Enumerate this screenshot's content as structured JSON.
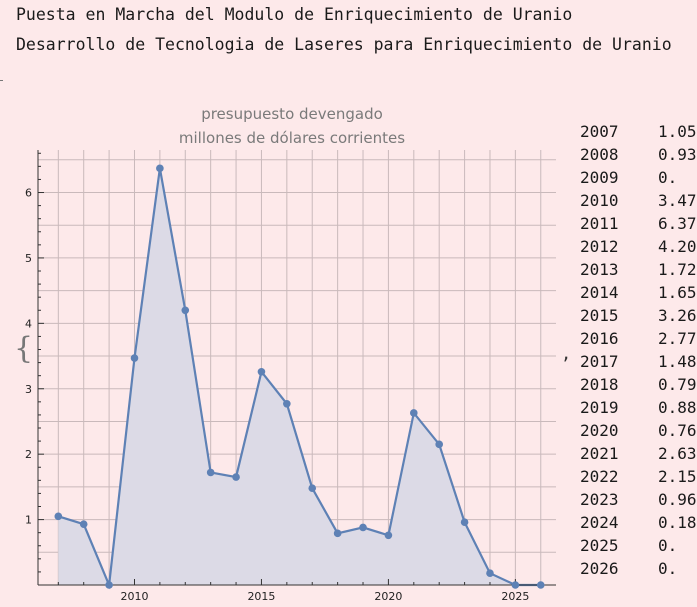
{
  "headings": [
    "Puesta en Marcha del Modulo de Enriquecimiento de Uranio",
    "Desarrollo de Tecnologia de Laseres para Enriquecimiento de Uranio"
  ],
  "brace": "{",
  "comma": ",",
  "chart_data": {
    "type": "area",
    "title": "presupuesto devengado",
    "subtitle": "millones de dólares corrientes",
    "xlabel": "",
    "ylabel": "",
    "x": [
      2007,
      2008,
      2009,
      2010,
      2011,
      2012,
      2013,
      2014,
      2015,
      2016,
      2017,
      2018,
      2019,
      2020,
      2021,
      2022,
      2023,
      2024,
      2025,
      2026
    ],
    "series": [
      {
        "values": [
          1.05,
          0.93,
          0,
          3.47,
          6.37,
          4.2,
          1.72,
          1.65,
          3.26,
          2.77,
          1.48,
          0.79,
          0.88,
          0.76,
          2.63,
          2.15,
          0.96,
          0.18,
          0,
          0
        ]
      }
    ],
    "xlim": [
      2006.2,
      2026.6
    ],
    "ylim": [
      0,
      6.65
    ],
    "xticks": [
      2010,
      2015,
      2020,
      2025
    ],
    "yticks": [
      1,
      2,
      3,
      4,
      5,
      6
    ],
    "grid": true,
    "line_color": "#5e81b5",
    "fill_color": "#dcdae6"
  },
  "table": {
    "rows": [
      {
        "year": "2007",
        "value": "1.05"
      },
      {
        "year": "2008",
        "value": "0.93"
      },
      {
        "year": "2009",
        "value": "0."
      },
      {
        "year": "2010",
        "value": "3.47"
      },
      {
        "year": "2011",
        "value": "6.37"
      },
      {
        "year": "2012",
        "value": "4.20"
      },
      {
        "year": "2013",
        "value": "1.72"
      },
      {
        "year": "2014",
        "value": "1.65"
      },
      {
        "year": "2015",
        "value": "3.26"
      },
      {
        "year": "2016",
        "value": "2.77"
      },
      {
        "year": "2017",
        "value": "1.48"
      },
      {
        "year": "2018",
        "value": "0.79"
      },
      {
        "year": "2019",
        "value": "0.88"
      },
      {
        "year": "2020",
        "value": "0.76"
      },
      {
        "year": "2021",
        "value": "2.63"
      },
      {
        "year": "2022",
        "value": "2.15"
      },
      {
        "year": "2023",
        "value": "0.96"
      },
      {
        "year": "2024",
        "value": "0.18"
      },
      {
        "year": "2025",
        "value": "0."
      },
      {
        "year": "2026",
        "value": "0."
      }
    ]
  }
}
